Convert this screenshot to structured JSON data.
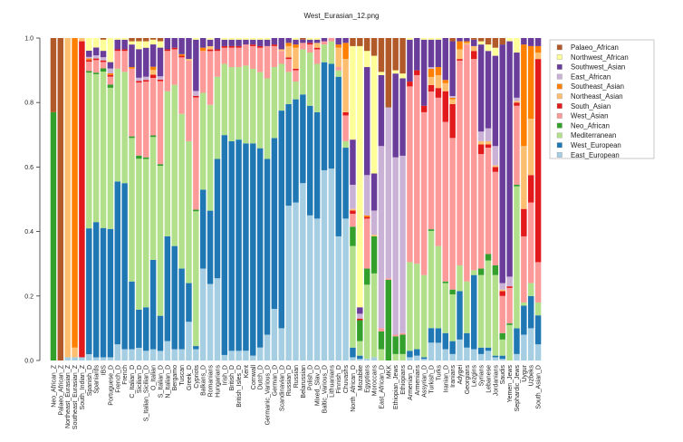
{
  "chart_data": {
    "type": "bar",
    "stacked": true,
    "title": "West_Eurasian_12.png",
    "xlabel": "",
    "ylabel": "",
    "ylim": [
      0,
      1
    ],
    "yticks": [
      "0.0",
      "0.2",
      "0.4",
      "0.6",
      "0.8",
      "1.0"
    ],
    "grid": false,
    "legend_placement": "right",
    "components": [
      {
        "name": "East_European",
        "color": "#a6cee3"
      },
      {
        "name": "West_European",
        "color": "#1f78b4"
      },
      {
        "name": "Mediterranean",
        "color": "#b2df8a"
      },
      {
        "name": "Neo_African",
        "color": "#33a02c"
      },
      {
        "name": "West_Asian",
        "color": "#fb9a99"
      },
      {
        "name": "South_Asian",
        "color": "#e31a1c"
      },
      {
        "name": "Northeast_Asian",
        "color": "#fdbf6f"
      },
      {
        "name": "Southeast_Asian",
        "color": "#ff7f00"
      },
      {
        "name": "East_African",
        "color": "#cab2d6"
      },
      {
        "name": "Southwest_Asian",
        "color": "#6a3d9a"
      },
      {
        "name": "Northwest_African",
        "color": "#ffff99"
      },
      {
        "name": "Palaeo_African",
        "color": "#b15928"
      }
    ],
    "bars": [
      {
        "label": "Neo_African_Z",
        "values": [
          0,
          0,
          0,
          0.77,
          0,
          0,
          0,
          0,
          0,
          0,
          0,
          0.23
        ]
      },
      {
        "label": "Palaeo_African_Z",
        "values": [
          0,
          0,
          0,
          0,
          0,
          0,
          0,
          0,
          0,
          0,
          0,
          1
        ]
      },
      {
        "label": "Northeast_Eurasian_Z",
        "values": [
          0.01,
          0,
          0,
          0,
          0,
          0,
          0.99,
          0,
          0,
          0,
          0,
          0
        ]
      },
      {
        "label": "Southeast_Eurasian_Z",
        "values": [
          0.01,
          0,
          0,
          0,
          0,
          0,
          0.03,
          0.96,
          0,
          0,
          0,
          0
        ]
      },
      {
        "label": "South_Indian_Z",
        "values": [
          0.01,
          0,
          0,
          0,
          0,
          0.98,
          0.01,
          0,
          0,
          0,
          0,
          0
        ]
      },
      {
        "label": "Spanish_D",
        "values": [
          0.02,
          0.4,
          0.495,
          0.005,
          0.03,
          0.005,
          0,
          0.005,
          0.005,
          0.02,
          0.04,
          0
        ]
      },
      {
        "label": "Spaniards",
        "values": [
          0.01,
          0.43,
          0.47,
          0.005,
          0.04,
          0.005,
          0,
          0,
          0.01,
          0.025,
          0.03,
          0
        ]
      },
      {
        "label": "IBS",
        "values": [
          0.01,
          0.405,
          0.49,
          0.01,
          0.02,
          0.005,
          0,
          0,
          0.01,
          0.02,
          0.035,
          0.005
        ]
      },
      {
        "label": "Portuguese_D",
        "values": [
          0.01,
          0.4,
          0.44,
          0.01,
          0.025,
          0.005,
          0,
          0.005,
          0.015,
          0.02,
          0.075,
          0
        ]
      },
      {
        "label": "French_D",
        "values": [
          0.05,
          0.505,
          0.35,
          0,
          0.055,
          0.005,
          0,
          0,
          0,
          0.03,
          0.005,
          0
        ]
      },
      {
        "label": "French",
        "values": [
          0.035,
          0.515,
          0.345,
          0,
          0.065,
          0.005,
          0,
          0,
          0,
          0.03,
          0.005,
          0
        ]
      },
      {
        "label": "C_Italian_D",
        "values": [
          0.035,
          0.21,
          0.445,
          0.005,
          0.21,
          0,
          0,
          0.005,
          0,
          0.07,
          0.01,
          0.01
        ]
      },
      {
        "label": "Sicilian_D",
        "values": [
          0.04,
          0.12,
          0.475,
          0.01,
          0.23,
          0.005,
          0,
          0,
          0.01,
          0.09,
          0.025,
          0.01
        ]
      },
      {
        "label": "S_Italian_Sicilian_D",
        "values": [
          0.03,
          0.135,
          0.46,
          0.005,
          0.235,
          0.005,
          0,
          0,
          0.01,
          0.09,
          0.02,
          0.01
        ]
      },
      {
        "label": "O_Italian",
        "values": [
          0.035,
          0.28,
          0.385,
          0.005,
          0.18,
          0.01,
          0.015,
          0.01,
          0,
          0.07,
          0.015,
          0.005
        ]
      },
      {
        "label": "S_Italian_D",
        "values": [
          0.03,
          0.11,
          0.47,
          0.005,
          0.26,
          0.005,
          0,
          0,
          0.01,
          0.09,
          0.02,
          0.01
        ]
      },
      {
        "label": "N_Italian_D",
        "values": [
          0.06,
          0.325,
          0.45,
          0,
          0.125,
          0.005,
          0,
          0,
          0,
          0.035,
          0,
          0
        ]
      },
      {
        "label": "Bergamo",
        "values": [
          0.035,
          0.32,
          0.5,
          0,
          0.11,
          0.005,
          0,
          0,
          0,
          0.03,
          0,
          0
        ]
      },
      {
        "label": "Tuscan",
        "values": [
          0.035,
          0.25,
          0.48,
          0,
          0.175,
          0.005,
          0,
          0.005,
          0,
          0.05,
          0,
          0
        ]
      },
      {
        "label": "Greek_D",
        "values": [
          0.12,
          0.12,
          0.44,
          0,
          0.25,
          0,
          0.005,
          0,
          0,
          0.065,
          0,
          0
        ]
      },
      {
        "label": "Cypriots",
        "values": [
          0.035,
          0.01,
          0.42,
          0.005,
          0.35,
          0.005,
          0,
          0,
          0.015,
          0.16,
          0.005,
          0
        ]
      },
      {
        "label": "Balkans_D",
        "values": [
          0.285,
          0.245,
          0.3,
          0,
          0.13,
          0,
          0,
          0.01,
          0,
          0.03,
          0,
          0
        ]
      },
      {
        "label": "Romanians",
        "values": [
          0.235,
          0.225,
          0.325,
          0,
          0.165,
          0.005,
          0.01,
          0,
          0,
          0.02,
          0.005,
          0
        ]
      },
      {
        "label": "Hungarians",
        "values": [
          0.255,
          0.37,
          0.255,
          0,
          0.08,
          0.005,
          0,
          0,
          0,
          0.035,
          0,
          0
        ]
      },
      {
        "label": "Irish_D",
        "values": [
          0.017,
          0.68,
          0.22,
          0,
          0.05,
          0.005,
          0,
          0,
          0,
          0.02,
          0.005,
          0
        ]
      },
      {
        "label": "British_D",
        "values": [
          0.03,
          0.65,
          0.23,
          0,
          0.06,
          0.005,
          0,
          0,
          0,
          0.02,
          0.005,
          0
        ]
      },
      {
        "label": "British_Isles_D",
        "values": [
          0.03,
          0.655,
          0.225,
          0,
          0.06,
          0.005,
          0,
          0,
          0,
          0.02,
          0.005,
          0
        ]
      },
      {
        "label": "Kent",
        "values": [
          0.03,
          0.64,
          0.24,
          0,
          0.065,
          0,
          0,
          0,
          0,
          0.015,
          0.005,
          0
        ]
      },
      {
        "label": "Cornwall",
        "values": [
          0.015,
          0.655,
          0.23,
          0,
          0.07,
          0.005,
          0,
          0,
          0,
          0.015,
          0.005,
          0
        ]
      },
      {
        "label": "Dutch_D",
        "values": [
          0.04,
          0.615,
          0.235,
          0,
          0.075,
          0.005,
          0,
          0,
          0,
          0.02,
          0.005,
          0
        ]
      },
      {
        "label": "Germanic_Various_D",
        "values": [
          0.08,
          0.545,
          0.25,
          0,
          0.1,
          0,
          0,
          0,
          0,
          0.02,
          0.005,
          0
        ]
      },
      {
        "label": "German_D",
        "values": [
          0.16,
          0.53,
          0.22,
          0,
          0.065,
          0.005,
          0,
          0,
          0,
          0.02,
          0,
          0
        ]
      },
      {
        "label": "Scandinavian_D",
        "values": [
          0.1,
          0.675,
          0.145,
          0,
          0.04,
          0,
          0.005,
          0,
          0,
          0.035,
          0,
          0
        ]
      },
      {
        "label": "Russian_D",
        "values": [
          0.48,
          0.315,
          0.1,
          0,
          0.04,
          0.005,
          0.035,
          0.01,
          0,
          0.015,
          0,
          0
        ]
      },
      {
        "label": "Russian",
        "values": [
          0.49,
          0.32,
          0.055,
          0,
          0.035,
          0.005,
          0.065,
          0.01,
          0,
          0.015,
          0.005,
          0
        ]
      },
      {
        "label": "Belarussian",
        "values": [
          0.55,
          0.275,
          0.14,
          0,
          0.02,
          0,
          0,
          0,
          0,
          0.01,
          0,
          0.005
        ]
      },
      {
        "label": "Polish_D",
        "values": [
          0.45,
          0.34,
          0.165,
          0,
          0.025,
          0.005,
          0,
          0,
          0,
          0.01,
          0.005,
          0
        ]
      },
      {
        "label": "Mixed_Slav_D",
        "values": [
          0.44,
          0.33,
          0.15,
          0,
          0.045,
          0.005,
          0.015,
          0,
          0,
          0.01,
          0.005,
          0
        ]
      },
      {
        "label": "Baltic_Various_D",
        "values": [
          0.59,
          0.335,
          0.055,
          0,
          0.01,
          0,
          0,
          0,
          0,
          0.01,
          0,
          0
        ]
      },
      {
        "label": "Lithuanians",
        "values": [
          0.595,
          0.325,
          0.07,
          0,
          0.01,
          0,
          0,
          0,
          0,
          0,
          0,
          0
        ]
      },
      {
        "label": "Finnish_D",
        "values": [
          0.385,
          0.495,
          0.02,
          0,
          0.01,
          0,
          0.06,
          0.01,
          0,
          0.02,
          0,
          0
        ]
      },
      {
        "label": "Chuvashs",
        "values": [
          0.44,
          0.22,
          0.02,
          0,
          0.08,
          0.01,
          0.165,
          0.05,
          0,
          0.015,
          0,
          0
        ]
      },
      {
        "label": "North_African_D",
        "values": [
          0.01,
          0.03,
          0.315,
          0.06,
          0.04,
          0.01,
          0.005,
          0,
          0.075,
          0.14,
          0.29,
          0.025
        ]
      },
      {
        "label": "Mozabite",
        "values": [
          0.005,
          0.01,
          0.045,
          0.065,
          0,
          0.005,
          0,
          0,
          0.015,
          0.02,
          0.81,
          0.025
        ]
      },
      {
        "label": "Egyptians",
        "values": [
          0.005,
          0,
          0.23,
          0.05,
          0.155,
          0.005,
          0,
          0.005,
          0.125,
          0.335,
          0.05,
          0.04
        ]
      },
      {
        "label": "Moroccans",
        "values": [
          0.01,
          0,
          0.26,
          0.115,
          0,
          0,
          0.005,
          0,
          0.075,
          0.115,
          0.365,
          0.055
        ]
      },
      {
        "label": "East_African_D",
        "values": [
          0,
          0,
          0.035,
          0.055,
          0.01,
          0,
          0,
          0,
          0.565,
          0.22,
          0.01,
          0.105
        ]
      },
      {
        "label": "MKK",
        "values": [
          0,
          0,
          0,
          0.25,
          0.005,
          0,
          0,
          0,
          0.53,
          0,
          0,
          0.215
        ]
      },
      {
        "label": "Ethiopian_Jews",
        "values": [
          0,
          0,
          0.02,
          0.055,
          0.005,
          0,
          0,
          0,
          0.55,
          0.26,
          0.01,
          0.1
        ]
      },
      {
        "label": "Ethiopians",
        "values": [
          0,
          0,
          0.02,
          0.06,
          0.005,
          0,
          0,
          0,
          0.55,
          0.24,
          0.015,
          0.11
        ]
      },
      {
        "label": "Armenian_D",
        "values": [
          0.01,
          0.02,
          0.275,
          0,
          0.545,
          0.015,
          0,
          0,
          0,
          0.13,
          0.005,
          0
        ]
      },
      {
        "label": "Armenians",
        "values": [
          0.015,
          0.02,
          0.265,
          0,
          0.585,
          0.015,
          0,
          0,
          0,
          0.1,
          0,
          0
        ]
      },
      {
        "label": "Assyrian_D",
        "values": [
          0.005,
          0.005,
          0.255,
          0,
          0.505,
          0.02,
          0,
          0,
          0,
          0.205,
          0.005,
          0
        ]
      },
      {
        "label": "Turkish_D",
        "values": [
          0.055,
          0.045,
          0.3,
          0.005,
          0.425,
          0.02,
          0.025,
          0.025,
          0.005,
          0.085,
          0.005,
          0
        ]
      },
      {
        "label": "Turks",
        "values": [
          0.055,
          0.045,
          0.255,
          0,
          0.46,
          0.03,
          0.04,
          0.025,
          0,
          0.085,
          0.005,
          0
        ]
      },
      {
        "label": "Iranian_D",
        "values": [
          0.035,
          0.05,
          0.155,
          0.005,
          0.495,
          0.095,
          0.025,
          0.01,
          0,
          0.13,
          0,
          0
        ]
      },
      {
        "label": "Iranians",
        "values": [
          0.02,
          0.04,
          0.145,
          0.015,
          0.47,
          0.105,
          0.015,
          0.005,
          0.005,
          0.17,
          0,
          0.01
        ]
      },
      {
        "label": "Adygei",
        "values": [
          0.065,
          0.15,
          0.08,
          0,
          0.635,
          0.005,
          0.03,
          0.025,
          0,
          0.01,
          0,
          0
        ]
      },
      {
        "label": "Georgians",
        "values": [
          0.04,
          0.045,
          0.16,
          0,
          0.735,
          0,
          0.005,
          0.005,
          0,
          0.01,
          0,
          0
        ]
      },
      {
        "label": "Lezgins",
        "values": [
          0.035,
          0.23,
          0.015,
          0,
          0.655,
          0.025,
          0.015,
          0,
          0,
          0.02,
          0,
          0.005
        ]
      },
      {
        "label": "Syrians",
        "values": [
          0.02,
          0.02,
          0.225,
          0.02,
          0.355,
          0.03,
          0.01,
          0,
          0.03,
          0.27,
          0.01,
          0.01
        ]
      },
      {
        "label": "Lebanese",
        "values": [
          0.03,
          0.01,
          0.27,
          0.02,
          0.33,
          0.01,
          0.01,
          0,
          0.04,
          0.24,
          0.02,
          0.02
        ]
      },
      {
        "label": "Jordanians",
        "values": [
          0.01,
          0.005,
          0.25,
          0.03,
          0.29,
          0.015,
          0.005,
          0,
          0.06,
          0.28,
          0.025,
          0.03
        ]
      },
      {
        "label": "Saudis",
        "values": [
          0.005,
          0.01,
          0.05,
          0.02,
          0.115,
          0.015,
          0.005,
          0,
          0.02,
          0.74,
          0,
          0.02
        ]
      },
      {
        "label": "Yemen_Jews",
        "values": [
          0,
          0,
          0.11,
          0.005,
          0.11,
          0.005,
          0,
          0,
          0.03,
          0.73,
          0.01,
          0
        ]
      },
      {
        "label": "Sephardic_Jews",
        "values": [
          0.02,
          0.08,
          0.44,
          0.005,
          0.245,
          0.01,
          0.005,
          0,
          0.01,
          0.14,
          0.045,
          0
        ]
      },
      {
        "label": "Uygur",
        "values": [
          0.08,
          0.09,
          0.01,
          0,
          0.205,
          0.085,
          0.195,
          0.315,
          0,
          0.02,
          0,
          0
        ]
      },
      {
        "label": "Uzbeks",
        "values": [
          0.1,
          0.1,
          0.04,
          0,
          0.25,
          0.085,
          0.175,
          0.225,
          0,
          0.025,
          0,
          0
        ]
      },
      {
        "label": "South_Asian_D",
        "values": [
          0.05,
          0.09,
          0.04,
          0,
          0.125,
          0.63,
          0.02,
          0.02,
          0,
          0.025,
          0,
          0
        ]
      }
    ]
  }
}
